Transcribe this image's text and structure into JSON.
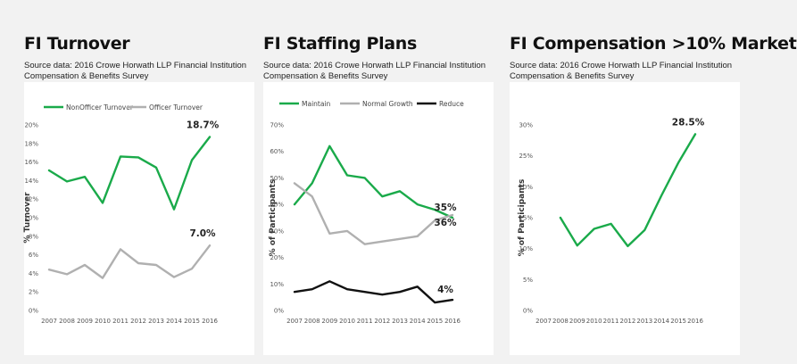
{
  "panels": [
    {
      "title": "FI Turnover",
      "source_line1": "Source data: 2016 Crowe Horwath LLP Financial Institution",
      "source_line2": "Compensation & Benefits Survey"
    },
    {
      "title": "FI Staffing Plans",
      "source_line1": "Source data: 2016 Crowe Horwath LLP Financial Institution",
      "source_line2": "Compensation & Benefits Survey"
    },
    {
      "title": "FI Compensation >10% Market",
      "source_line1": "Source data: 2016 Crowe Horwath LLP Financial Institution",
      "source_line2": "Compensation & Benefits Survey"
    }
  ],
  "chart_data": [
    {
      "type": "line",
      "title": "FI Turnover",
      "ylabel": "% Turnover",
      "xlabel": "",
      "x": [
        "2007",
        "2008",
        "2009",
        "2010",
        "2011",
        "2012",
        "2013",
        "2014",
        "2015",
        "2016"
      ],
      "ylim": [
        0,
        20
      ],
      "yticks": [
        0,
        2,
        4,
        6,
        8,
        10,
        12,
        14,
        16,
        18,
        20
      ],
      "yticklabels": [
        "0%",
        "2%",
        "4%",
        "6%",
        "8%",
        "10%",
        "12%",
        "14%",
        "16%",
        "18%",
        "20%"
      ],
      "grid": false,
      "legend": "top",
      "series": [
        {
          "name": "NonOfficer Turnover",
          "color": "#1aaa4a",
          "values": [
            15.1,
            13.9,
            14.4,
            11.6,
            16.6,
            16.5,
            15.4,
            10.9,
            16.2,
            18.7
          ]
        },
        {
          "name": "Officer Turnover",
          "color": "#b0b0b0",
          "values": [
            4.4,
            3.9,
            4.9,
            3.5,
            6.6,
            5.1,
            4.9,
            3.6,
            4.5,
            7.0
          ]
        }
      ],
      "annotations": [
        {
          "text": "18.7%",
          "series": 0,
          "index": 9
        },
        {
          "text": "7.0%",
          "series": 1,
          "index": 9
        }
      ]
    },
    {
      "type": "line",
      "title": "FI Staffing Plans",
      "ylabel": "% of Participants",
      "xlabel": "",
      "x": [
        "2007",
        "2008",
        "2009",
        "2010",
        "2011",
        "2012",
        "2013",
        "2014",
        "2015",
        "2016"
      ],
      "ylim": [
        0,
        70
      ],
      "yticks": [
        0,
        10,
        20,
        30,
        40,
        50,
        60,
        70
      ],
      "yticklabels": [
        "0%",
        "10%",
        "20%",
        "30%",
        "40%",
        "50%",
        "60%",
        "70%"
      ],
      "grid": false,
      "legend": "top",
      "series": [
        {
          "name": "Maintain",
          "color": "#1aaa4a",
          "values": [
            40,
            48,
            62,
            51,
            50,
            43,
            45,
            40,
            38,
            35
          ]
        },
        {
          "name": "Normal Growth",
          "color": "#b0b0b0",
          "values": [
            48,
            43,
            29,
            30,
            25,
            26,
            27,
            28,
            34,
            36
          ]
        },
        {
          "name": "Reduce",
          "color": "#111111",
          "values": [
            7,
            8,
            11,
            8,
            7,
            6,
            7,
            9,
            3,
            4
          ]
        }
      ],
      "annotations": [
        {
          "text": "35%",
          "series": 0,
          "index": 9
        },
        {
          "text": "36%",
          "series": 1,
          "index": 9
        },
        {
          "text": "4%",
          "series": 2,
          "index": 9
        }
      ]
    },
    {
      "type": "line",
      "title": "FI Compensation >10% Market",
      "ylabel": "% of Participants",
      "xlabel": "",
      "x": [
        "2007",
        "2008",
        "2009",
        "2010",
        "2011",
        "2012",
        "2013",
        "2014",
        "2015",
        "2016"
      ],
      "ylim": [
        0,
        30
      ],
      "yticks": [
        0,
        5,
        10,
        15,
        20,
        25,
        30
      ],
      "yticklabels": [
        "0%",
        "5%",
        "10%",
        "15%",
        "20%",
        "25%",
        "30%"
      ],
      "grid": false,
      "legend": "none",
      "series": [
        {
          "name": "",
          "color": "#1aaa4a",
          "values": [
            null,
            15.0,
            10.5,
            13.2,
            14.0,
            10.4,
            13.0,
            18.6,
            23.9,
            28.5
          ]
        }
      ],
      "annotations": [
        {
          "text": "28.5%",
          "series": 0,
          "index": 9
        }
      ]
    }
  ]
}
